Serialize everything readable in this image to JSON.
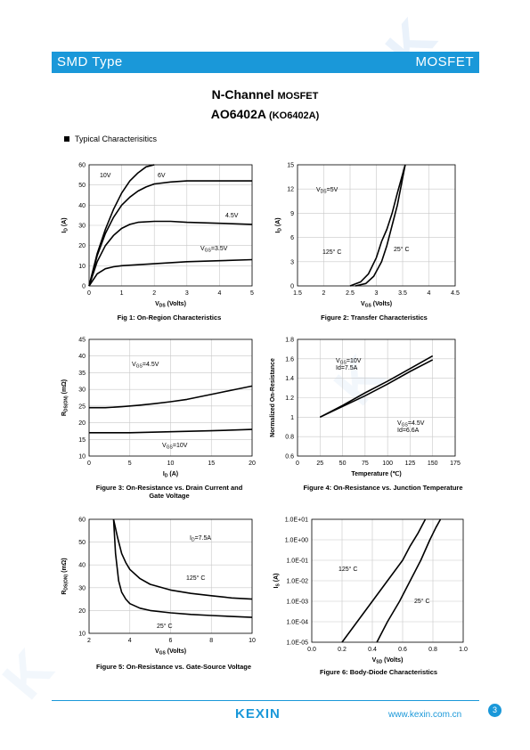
{
  "header": {
    "left": "SMD Type",
    "right": "MOSFET"
  },
  "title": {
    "line1_main": "N-Channel ",
    "line1_small": "MOSFET",
    "line2_main": "AO6402A",
    "line2_small": " (KO6402A)"
  },
  "section_label": "Typical  Characterisitics",
  "footer": {
    "logo": "KEXIN",
    "url": "www.kexin.com.cn",
    "page": "3"
  },
  "chart_data": [
    {
      "id": "fig1",
      "type": "line",
      "caption": [
        "Fig 1: On-Region Characteristics"
      ],
      "xlabel": "V_DS (Volts)",
      "ylabel": "I_D (A)",
      "xlim": [
        0,
        5
      ],
      "ylim": [
        0,
        60
      ],
      "xticks": [
        "0",
        "1",
        "2",
        "3",
        "4",
        "5"
      ],
      "yticks": [
        "0",
        "10",
        "20",
        "30",
        "40",
        "50",
        "60"
      ],
      "grid": true,
      "series": [
        {
          "name": "10V",
          "x": [
            0,
            0.25,
            0.5,
            0.75,
            1,
            1.25,
            1.5,
            1.75,
            2
          ],
          "y": [
            0,
            16,
            28,
            38,
            46,
            52,
            56,
            59,
            60
          ]
        },
        {
          "name": "6V",
          "x": [
            0,
            0.25,
            0.5,
            0.75,
            1,
            1.25,
            1.5,
            1.75,
            2,
            2.5,
            3,
            4,
            5
          ],
          "y": [
            0,
            15,
            26,
            34,
            40,
            44,
            47,
            49,
            50.5,
            51.5,
            52,
            52,
            52
          ]
        },
        {
          "name": "4.5V",
          "x": [
            0,
            0.25,
            0.5,
            0.75,
            1,
            1.25,
            1.5,
            2,
            2.5,
            3,
            4,
            5
          ],
          "y": [
            0,
            12,
            20,
            25,
            28.5,
            30.5,
            31.5,
            32,
            32,
            31.5,
            31,
            30.5
          ]
        },
        {
          "name": "V_GS=3.5V",
          "x": [
            0,
            0.25,
            0.5,
            0.75,
            1,
            1.5,
            2,
            3,
            4,
            5
          ],
          "y": [
            0,
            6,
            8.5,
            9.5,
            10,
            10.5,
            11,
            12,
            12.5,
            13
          ]
        }
      ],
      "annotations": [
        "10V",
        "6V",
        "4.5V",
        "V_GS=3.5V"
      ]
    },
    {
      "id": "fig2",
      "type": "line",
      "caption": [
        "Figure 2: Transfer Characteristics"
      ],
      "xlabel": "V_GS (Volts)",
      "ylabel": "I_D (A)",
      "xlim": [
        1.5,
        4.5
      ],
      "ylim": [
        0,
        15
      ],
      "xticks": [
        "1.5",
        "2",
        "2.5",
        "3",
        "3.5",
        "4",
        "4.5"
      ],
      "yticks": [
        "0",
        "3",
        "6",
        "9",
        "12",
        "15"
      ],
      "grid": true,
      "series": [
        {
          "name": "125°C",
          "x": [
            2.5,
            2.7,
            2.85,
            3,
            3.1,
            3.2,
            3.3,
            3.4,
            3.55
          ],
          "y": [
            0,
            0.5,
            1.5,
            3.5,
            5.5,
            7,
            9,
            11.5,
            15
          ]
        },
        {
          "name": "25°C",
          "x": [
            2.6,
            2.8,
            2.95,
            3.1,
            3.2,
            3.3,
            3.4,
            3.55
          ],
          "y": [
            0,
            0.3,
            1.2,
            3,
            5,
            7.5,
            10,
            15
          ]
        }
      ],
      "annotations": [
        "V_DS=5V",
        "125° C",
        "25° C"
      ]
    },
    {
      "id": "fig3",
      "type": "line",
      "caption": [
        "Figure 3: On-Resistance vs. Drain Current and",
        "Gate Voltage"
      ],
      "xlabel": "I_D (A)",
      "ylabel": "R_DS(ON) (mΩ)",
      "xlim": [
        0,
        20
      ],
      "ylim": [
        10,
        45
      ],
      "xticks": [
        "0",
        "5",
        "10",
        "15",
        "20"
      ],
      "yticks": [
        "10",
        "15",
        "20",
        "25",
        "30",
        "35",
        "40",
        "45"
      ],
      "grid": true,
      "series": [
        {
          "name": "V_GS=4.5V",
          "x": [
            0,
            2,
            4,
            6,
            8,
            10,
            12,
            14,
            16,
            18,
            20
          ],
          "y": [
            24.5,
            24.5,
            24.8,
            25.2,
            25.7,
            26.3,
            27,
            28,
            29,
            30,
            31
          ]
        },
        {
          "name": "V_GS=10V",
          "x": [
            0,
            5,
            10,
            15,
            20
          ],
          "y": [
            17,
            17,
            17.3,
            17.6,
            18
          ]
        }
      ],
      "annotations": [
        "V_GS=4.5V",
        "V_GS=10V"
      ]
    },
    {
      "id": "fig4",
      "type": "line",
      "caption": [
        "Figure 4: On-Resistance vs. Junction Temperature"
      ],
      "xlabel": "Temperature (℃)",
      "ylabel": "Normalized On-Resistance",
      "xlim": [
        0,
        175
      ],
      "ylim": [
        0.6,
        1.8
      ],
      "xticks": [
        "0",
        "25",
        "50",
        "75",
        "100",
        "125",
        "150",
        "175"
      ],
      "yticks": [
        "0.6",
        "0.8",
        "1",
        "1.2",
        "1.4",
        "1.6",
        "1.8"
      ],
      "grid": true,
      "series": [
        {
          "name": "V_GS=10V Id=7.5A",
          "x": [
            25,
            50,
            75,
            100,
            125,
            150
          ],
          "y": [
            1.0,
            1.12,
            1.25,
            1.37,
            1.5,
            1.63
          ]
        },
        {
          "name": "V_GS=4.5V Id=6.6A",
          "x": [
            25,
            50,
            75,
            100,
            125,
            150
          ],
          "y": [
            1.0,
            1.11,
            1.22,
            1.34,
            1.47,
            1.59
          ]
        }
      ],
      "annotations": [
        "V_GS=10V",
        "Id=7.5A",
        "V_GS=4.5V",
        "Id=6.6A"
      ]
    },
    {
      "id": "fig5",
      "type": "line",
      "caption": [
        "Figure 5: On-Resistance vs. Gate-Source Voltage"
      ],
      "xlabel": "V_GS (Volts)",
      "ylabel": "R_DS(ON) (mΩ)",
      "xlim": [
        2,
        10
      ],
      "ylim": [
        10,
        60
      ],
      "xticks": [
        "2",
        "4",
        "6",
        "8",
        "10"
      ],
      "yticks": [
        "10",
        "20",
        "30",
        "40",
        "50",
        "60"
      ],
      "grid": true,
      "series": [
        {
          "name": "125°C",
          "x": [
            3.2,
            3.4,
            3.6,
            3.8,
            4,
            4.5,
            5,
            6,
            7,
            8,
            9,
            10
          ],
          "y": [
            60,
            52,
            45,
            41,
            38,
            34,
            31.5,
            29,
            27.5,
            26.5,
            25.5,
            25
          ]
        },
        {
          "name": "25°C",
          "x": [
            3.2,
            3.3,
            3.45,
            3.6,
            3.8,
            4,
            4.5,
            5,
            6,
            7,
            8,
            9,
            10
          ],
          "y": [
            60,
            45,
            33,
            28,
            25,
            23,
            21,
            20,
            19,
            18.3,
            17.8,
            17.4,
            17
          ]
        }
      ],
      "annotations": [
        "I_D=7.5A",
        "125° C",
        "25° C"
      ]
    },
    {
      "id": "fig6",
      "type": "line",
      "caption": [
        "Figure 6: Body-Diode Characteristics"
      ],
      "xlabel": "V_SD (Volts)",
      "ylabel": "I_S (A)",
      "xlim": [
        0,
        1.0
      ],
      "ylim_log10": [
        -5,
        1
      ],
      "log_y": true,
      "xticks": [
        "0.0",
        "0.2",
        "0.4",
        "0.6",
        "0.8",
        "1.0"
      ],
      "yticks": [
        "1.0E-05",
        "1.0E-04",
        "1.0E-03",
        "1.0E-02",
        "1.0E-01",
        "1.0E+00",
        "1.0E+01"
      ],
      "grid": true,
      "series": [
        {
          "name": "125°C",
          "x": [
            0.2,
            0.3,
            0.4,
            0.5,
            0.6,
            0.65,
            0.7,
            0.75
          ],
          "y": [
            1e-05,
            0.0001,
            0.001,
            0.01,
            0.1,
            0.5,
            2,
            10
          ]
        },
        {
          "name": "25°C",
          "x": [
            0.43,
            0.5,
            0.58,
            0.65,
            0.72,
            0.78,
            0.82,
            0.85
          ],
          "y": [
            1e-05,
            0.0001,
            0.001,
            0.01,
            0.1,
            1,
            4,
            10
          ]
        }
      ],
      "annotations": [
        "125° C",
        "25° C"
      ]
    }
  ]
}
